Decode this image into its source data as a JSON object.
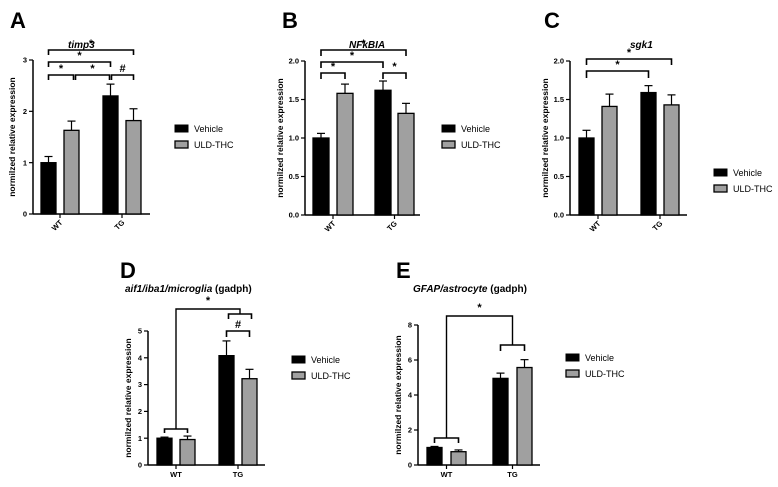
{
  "figure": {
    "legend": {
      "vehicle": "Vehicle",
      "uld": "ULD-THC"
    },
    "colors": {
      "vehicle": "#000000",
      "uld": "#a0a0a0",
      "axis": "#000000"
    },
    "ylabel": "normilzed relative expression"
  },
  "chart_data": [
    {
      "panel": "A",
      "type": "bar",
      "title": "timp3",
      "title_suffix": "",
      "xlabel": "",
      "ylabel": "normilzed relative expression",
      "categories": [
        "WT",
        "TG"
      ],
      "xtick_rotation": 45,
      "ylim": [
        0,
        3
      ],
      "yticks": [
        0,
        1,
        2,
        3
      ],
      "series": [
        {
          "name": "Vehicle",
          "values": [
            1.0,
            2.3
          ],
          "errors": [
            0.12,
            0.23
          ]
        },
        {
          "name": "ULD-THC",
          "values": [
            1.63,
            1.82
          ],
          "errors": [
            0.18,
            0.23
          ]
        }
      ],
      "annotations": [
        {
          "from": "WT-Vehicle",
          "to": "TG-ULD-THC",
          "label": "*"
        },
        {
          "from": "WT-Vehicle",
          "to": "TG-Vehicle",
          "label": "*"
        },
        {
          "from": "WT-Vehicle",
          "to": "WT-ULD-THC",
          "label": "*"
        },
        {
          "from": "WT-ULD-THC",
          "to": "TG-Vehicle",
          "label": "*"
        },
        {
          "from": "TG-Vehicle",
          "to": "TG-ULD-THC",
          "label": "#"
        }
      ],
      "legend_position": "right"
    },
    {
      "panel": "B",
      "type": "bar",
      "title": "NFkBIA",
      "title_suffix": "",
      "xlabel": "",
      "ylabel": "normilzed relative expression",
      "categories": [
        "WT",
        "TG"
      ],
      "xtick_rotation": 45,
      "ylim": [
        0,
        2.0
      ],
      "yticks": [
        0.0,
        0.5,
        1.0,
        1.5,
        2.0
      ],
      "series": [
        {
          "name": "Vehicle",
          "values": [
            1.0,
            1.62
          ],
          "errors": [
            0.06,
            0.12
          ]
        },
        {
          "name": "ULD-THC",
          "values": [
            1.58,
            1.32
          ],
          "errors": [
            0.12,
            0.13
          ]
        }
      ],
      "annotations": [
        {
          "from": "WT-Vehicle",
          "to": "TG-ULD-THC",
          "label": "*"
        },
        {
          "from": "WT-Vehicle",
          "to": "TG-Vehicle",
          "label": "*"
        },
        {
          "from": "WT-Vehicle",
          "to": "WT-ULD-THC",
          "label": "*"
        },
        {
          "from": "TG-Vehicle",
          "to": "TG-ULD-THC",
          "label": "*"
        }
      ],
      "legend_position": "right"
    },
    {
      "panel": "C",
      "type": "bar",
      "title": "sgk1",
      "title_suffix": "",
      "xlabel": "",
      "ylabel": "normilzed relative expression",
      "categories": [
        "WT",
        "TG"
      ],
      "xtick_rotation": 45,
      "ylim": [
        0,
        2.0
      ],
      "yticks": [
        0.0,
        0.5,
        1.0,
        1.5,
        2.0
      ],
      "series": [
        {
          "name": "Vehicle",
          "values": [
            1.0,
            1.59
          ],
          "errors": [
            0.1,
            0.09
          ]
        },
        {
          "name": "ULD-THC",
          "values": [
            1.41,
            1.43
          ],
          "errors": [
            0.16,
            0.13
          ]
        }
      ],
      "annotations": [
        {
          "from": "WT-Vehicle",
          "to": "TG-ULD-THC",
          "label": "*"
        },
        {
          "from": "WT-Vehicle",
          "to": "TG-Vehicle",
          "label": "*"
        }
      ],
      "legend_position": "right"
    },
    {
      "panel": "D",
      "type": "bar",
      "title": "aif1/iba1/microglia",
      "title_suffix": "(gadph)",
      "xlabel": "",
      "ylabel": "normilzed relative expression",
      "categories": [
        "WT",
        "TG"
      ],
      "xtick_rotation": 0,
      "ylim": [
        0,
        5
      ],
      "yticks": [
        0,
        1,
        2,
        3,
        4,
        5
      ],
      "series": [
        {
          "name": "Vehicle",
          "values": [
            1.0,
            4.08
          ],
          "errors": [
            0.04,
            0.55
          ]
        },
        {
          "name": "ULD-THC",
          "values": [
            0.95,
            3.22
          ],
          "errors": [
            0.13,
            0.35
          ]
        }
      ],
      "annotations": [
        {
          "from": "WT",
          "to": "TG",
          "label": "*"
        },
        {
          "from": "TG-Vehicle",
          "to": "TG-ULD-THC",
          "label": "#"
        }
      ],
      "legend_position": "right"
    },
    {
      "panel": "E",
      "type": "bar",
      "title": "GFAP/astrocyte",
      "title_suffix": "(gadph)",
      "xlabel": "",
      "ylabel": "normilzed relative expression",
      "categories": [
        "WT",
        "TG"
      ],
      "xtick_rotation": 0,
      "ylim": [
        0,
        8
      ],
      "yticks": [
        0,
        2,
        4,
        6,
        8
      ],
      "series": [
        {
          "name": "Vehicle",
          "values": [
            1.0,
            4.95
          ],
          "errors": [
            0.06,
            0.3
          ]
        },
        {
          "name": "ULD-THC",
          "values": [
            0.76,
            5.57
          ],
          "errors": [
            0.1,
            0.45
          ]
        }
      ],
      "annotations": [
        {
          "from": "WT",
          "to": "TG",
          "label": "*"
        }
      ],
      "legend_position": "right"
    }
  ]
}
